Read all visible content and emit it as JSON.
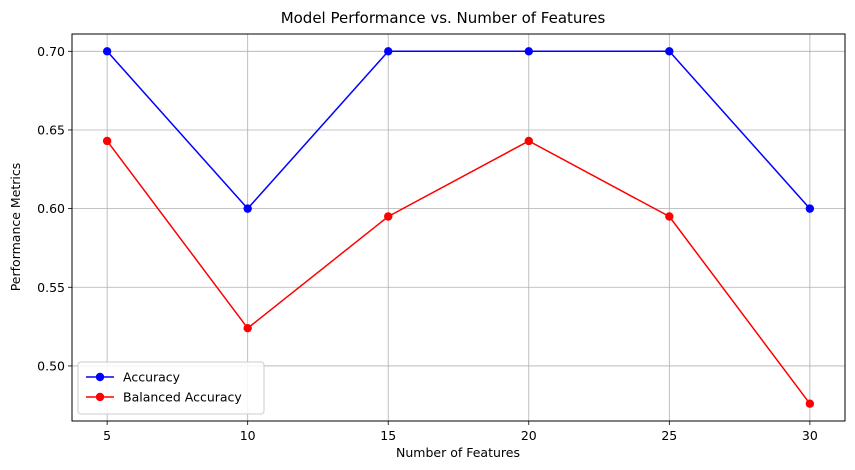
{
  "chart_data": {
    "type": "line",
    "title": "Model Performance vs. Number of Features",
    "xlabel": "Number of Features",
    "ylabel": "Performance Metrics",
    "x": [
      5,
      10,
      15,
      20,
      25,
      30
    ],
    "x_ticks": [
      "5",
      "10",
      "15",
      "20",
      "25",
      "30"
    ],
    "y_ticks": [
      "0.50",
      "0.55",
      "0.60",
      "0.65",
      "0.70"
    ],
    "xlim": [
      3.75,
      31.25
    ],
    "ylim": [
      0.465,
      0.711
    ],
    "grid": true,
    "legend_position": "lower-left",
    "series": [
      {
        "name": "Accuracy",
        "color": "#0000ff",
        "marker": "circle",
        "values": [
          0.7,
          0.6,
          0.7,
          0.7,
          0.7,
          0.6
        ]
      },
      {
        "name": "Balanced Accuracy",
        "color": "#ff0000",
        "marker": "circle",
        "values": [
          0.643,
          0.524,
          0.595,
          0.643,
          0.595,
          0.476
        ]
      }
    ]
  }
}
